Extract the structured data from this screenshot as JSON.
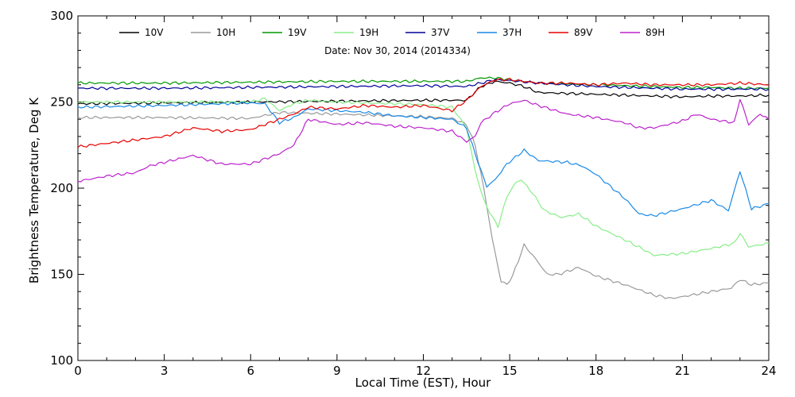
{
  "chart_data": {
    "type": "line",
    "title": "",
    "subtitle": "Date: Nov 30, 2014 (2014334)",
    "xlabel": "Local Time (EST), Hour",
    "ylabel": "Brightness Temperature, Deg K",
    "xlim": [
      0,
      24
    ],
    "ylim": [
      100,
      300
    ],
    "xticks": [
      0,
      3,
      6,
      9,
      12,
      15,
      18,
      21,
      24
    ],
    "yticks": [
      100,
      150,
      200,
      250,
      300
    ],
    "grid": false,
    "legend_position": "top",
    "series": [
      {
        "name": "10V",
        "color": "#000000",
        "points": [
          [
            0,
            249
          ],
          [
            3,
            249.5
          ],
          [
            6,
            250
          ],
          [
            9,
            250.5
          ],
          [
            12,
            251
          ],
          [
            13.5,
            251
          ],
          [
            14,
            259
          ],
          [
            14.5,
            262
          ],
          [
            15,
            261
          ],
          [
            15.5,
            259
          ],
          [
            16,
            255.5
          ],
          [
            17,
            255
          ],
          [
            18,
            254.5
          ],
          [
            19,
            254
          ],
          [
            20,
            253.5
          ],
          [
            21,
            253
          ],
          [
            22,
            253.5
          ],
          [
            23,
            253.5
          ],
          [
            24,
            254
          ]
        ]
      },
      {
        "name": "10H",
        "color": "#9a9a9a",
        "points": [
          [
            0,
            241
          ],
          [
            3,
            241
          ],
          [
            6,
            240.5
          ],
          [
            7,
            244
          ],
          [
            8,
            243.5
          ],
          [
            9,
            243
          ],
          [
            10,
            242.5
          ],
          [
            11,
            242
          ],
          [
            12,
            241.5
          ],
          [
            13,
            240.5
          ],
          [
            13.5,
            237
          ],
          [
            13.8,
            225
          ],
          [
            14.1,
            200
          ],
          [
            14.4,
            170
          ],
          [
            14.7,
            146
          ],
          [
            14.9,
            144
          ],
          [
            15.1,
            149
          ],
          [
            15.5,
            167
          ],
          [
            15.9,
            159
          ],
          [
            16.3,
            150
          ],
          [
            16.7,
            150
          ],
          [
            17.4,
            154
          ],
          [
            18,
            149
          ],
          [
            19,
            144
          ],
          [
            20,
            138
          ],
          [
            20.6,
            136
          ],
          [
            21,
            137
          ],
          [
            22,
            140
          ],
          [
            22.7,
            142
          ],
          [
            23,
            147
          ],
          [
            23.4,
            144
          ],
          [
            24,
            145
          ]
        ]
      },
      {
        "name": "19V",
        "color": "#009900",
        "points": [
          [
            0,
            261
          ],
          [
            3,
            261
          ],
          [
            6,
            261.5
          ],
          [
            9,
            262
          ],
          [
            12,
            262
          ],
          [
            13.5,
            262
          ],
          [
            14,
            264
          ],
          [
            14.5,
            264
          ],
          [
            15,
            263
          ],
          [
            16,
            261
          ],
          [
            17,
            260.5
          ],
          [
            18,
            260
          ],
          [
            19,
            259.5
          ],
          [
            20,
            259
          ],
          [
            21,
            258.5
          ],
          [
            22,
            258.5
          ],
          [
            23,
            258
          ],
          [
            24,
            258
          ]
        ]
      },
      {
        "name": "19H",
        "color": "#88ee88",
        "points": [
          [
            0,
            250
          ],
          [
            3,
            250
          ],
          [
            6,
            250
          ],
          [
            6.5,
            252
          ],
          [
            7,
            245
          ],
          [
            7.5,
            249
          ],
          [
            8,
            251
          ],
          [
            9,
            250
          ],
          [
            10,
            249.5
          ],
          [
            11,
            249
          ],
          [
            12,
            248.5
          ],
          [
            13,
            247
          ],
          [
            13.5,
            235
          ],
          [
            13.8,
            210
          ],
          [
            14.1,
            193
          ],
          [
            14.4,
            183
          ],
          [
            14.6,
            178
          ],
          [
            14.9,
            195
          ],
          [
            15.2,
            203
          ],
          [
            15.4,
            205
          ],
          [
            15.8,
            197
          ],
          [
            16.2,
            187
          ],
          [
            16.8,
            183
          ],
          [
            17.4,
            185
          ],
          [
            18,
            178
          ],
          [
            19,
            170
          ],
          [
            19.7,
            164
          ],
          [
            20,
            161
          ],
          [
            21,
            162
          ],
          [
            22,
            165
          ],
          [
            22.8,
            168
          ],
          [
            23,
            174
          ],
          [
            23.3,
            166
          ],
          [
            24,
            168
          ]
        ]
      },
      {
        "name": "37V",
        "color": "#000099",
        "points": [
          [
            0,
            258
          ],
          [
            3,
            258
          ],
          [
            6,
            258.5
          ],
          [
            9,
            259
          ],
          [
            12,
            259.5
          ],
          [
            13.5,
            259
          ],
          [
            14,
            261
          ],
          [
            14.5,
            263
          ],
          [
            15,
            262.5
          ],
          [
            16,
            261
          ],
          [
            17,
            260
          ],
          [
            18,
            259
          ],
          [
            19,
            258.5
          ],
          [
            20,
            258
          ],
          [
            21,
            257.5
          ],
          [
            22,
            257.5
          ],
          [
            23,
            257.5
          ],
          [
            24,
            257.5
          ]
        ]
      },
      {
        "name": "37H",
        "color": "#1a8ae6",
        "points": [
          [
            0,
            247
          ],
          [
            3,
            248
          ],
          [
            5,
            249
          ],
          [
            6,
            249.5
          ],
          [
            6.5,
            249
          ],
          [
            7,
            238
          ],
          [
            7.5,
            241
          ],
          [
            8,
            246
          ],
          [
            9,
            245
          ],
          [
            10,
            244
          ],
          [
            11,
            242
          ],
          [
            12,
            241
          ],
          [
            13,
            240
          ],
          [
            13.5,
            235
          ],
          [
            13.8,
            220
          ],
          [
            14.2,
            201
          ],
          [
            14.5,
            205
          ],
          [
            14.9,
            214
          ],
          [
            15.5,
            222
          ],
          [
            16,
            216
          ],
          [
            17,
            215
          ],
          [
            17.5,
            213
          ],
          [
            18,
            208
          ],
          [
            18.5,
            201
          ],
          [
            19,
            194
          ],
          [
            19.5,
            185
          ],
          [
            20,
            184
          ],
          [
            21,
            188
          ],
          [
            22,
            193
          ],
          [
            22.6,
            187
          ],
          [
            23,
            210
          ],
          [
            23.4,
            188
          ],
          [
            24,
            191
          ]
        ]
      },
      {
        "name": "89V",
        "color": "#e60000",
        "points": [
          [
            0,
            224
          ],
          [
            1,
            226
          ],
          [
            2,
            228
          ],
          [
            3,
            230
          ],
          [
            4,
            235
          ],
          [
            5,
            233
          ],
          [
            6,
            234
          ],
          [
            7,
            240
          ],
          [
            7.5,
            243
          ],
          [
            8,
            247
          ],
          [
            9,
            246
          ],
          [
            10,
            248
          ],
          [
            11,
            247
          ],
          [
            12,
            248
          ],
          [
            13,
            245
          ],
          [
            13.5,
            251
          ],
          [
            14,
            259
          ],
          [
            14.5,
            263
          ],
          [
            15,
            263
          ],
          [
            16,
            261
          ],
          [
            17,
            261
          ],
          [
            18,
            260
          ],
          [
            19,
            261
          ],
          [
            20,
            260
          ],
          [
            21,
            260
          ],
          [
            22,
            260
          ],
          [
            23,
            261
          ],
          [
            24,
            260
          ]
        ]
      },
      {
        "name": "89H",
        "color": "#bb22cc",
        "points": [
          [
            0,
            204
          ],
          [
            1,
            207
          ],
          [
            2,
            209
          ],
          [
            2.5,
            213
          ],
          [
            3,
            215
          ],
          [
            4,
            219
          ],
          [
            5,
            214
          ],
          [
            6,
            214
          ],
          [
            7,
            220
          ],
          [
            7.5,
            225
          ],
          [
            8,
            240
          ],
          [
            9,
            237
          ],
          [
            10,
            238
          ],
          [
            11,
            236
          ],
          [
            12,
            235
          ],
          [
            13,
            233
          ],
          [
            13.5,
            227
          ],
          [
            13.8,
            230
          ],
          [
            14,
            238
          ],
          [
            14.5,
            244
          ],
          [
            15,
            249
          ],
          [
            15.5,
            251
          ],
          [
            16,
            248
          ],
          [
            17,
            243
          ],
          [
            18,
            241
          ],
          [
            19,
            238
          ],
          [
            19.5,
            235
          ],
          [
            20,
            235
          ],
          [
            21,
            239
          ],
          [
            21.5,
            243
          ],
          [
            22,
            240
          ],
          [
            22.8,
            238
          ],
          [
            23,
            252
          ],
          [
            23.3,
            237
          ],
          [
            23.7,
            243
          ],
          [
            24,
            240
          ]
        ]
      }
    ]
  }
}
